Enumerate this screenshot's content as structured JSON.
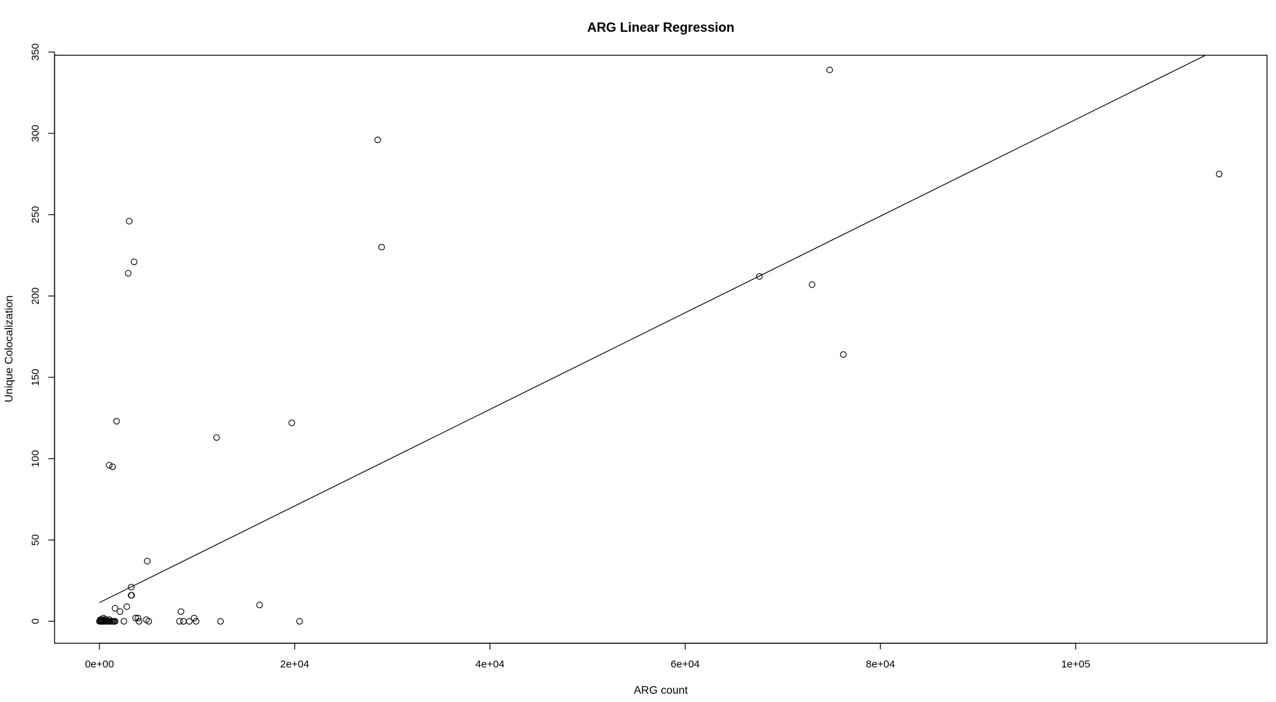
{
  "chart_data": {
    "type": "scatter",
    "title": "ARG Linear Regression",
    "xlabel": "ARG count",
    "ylabel": "Unique Colocalization",
    "xlim": [
      -4600,
      119600
    ],
    "ylim": [
      -13.5,
      348
    ],
    "x_ticks": [
      {
        "value": 0,
        "label": "0e+00"
      },
      {
        "value": 20000,
        "label": "2e+04"
      },
      {
        "value": 40000,
        "label": "4e+04"
      },
      {
        "value": 60000,
        "label": "6e+04"
      },
      {
        "value": 80000,
        "label": "8e+04"
      },
      {
        "value": 100000,
        "label": "1e+05"
      }
    ],
    "y_ticks": [
      {
        "value": 0,
        "label": "0"
      },
      {
        "value": 50,
        "label": "50"
      },
      {
        "value": 100,
        "label": "100"
      },
      {
        "value": 150,
        "label": "150"
      },
      {
        "value": 200,
        "label": "200"
      },
      {
        "value": 250,
        "label": "250"
      },
      {
        "value": 300,
        "label": "300"
      },
      {
        "value": 350,
        "label": "350"
      }
    ],
    "points": [
      {
        "x": 0,
        "y": 0
      },
      {
        "x": 50,
        "y": 0
      },
      {
        "x": 100,
        "y": 1
      },
      {
        "x": 150,
        "y": 0
      },
      {
        "x": 200,
        "y": 1
      },
      {
        "x": 250,
        "y": 0
      },
      {
        "x": 300,
        "y": 1
      },
      {
        "x": 350,
        "y": 0
      },
      {
        "x": 400,
        "y": 2
      },
      {
        "x": 450,
        "y": 0
      },
      {
        "x": 500,
        "y": 1
      },
      {
        "x": 600,
        "y": 0
      },
      {
        "x": 700,
        "y": 1
      },
      {
        "x": 800,
        "y": 0
      },
      {
        "x": 900,
        "y": 0
      },
      {
        "x": 1000,
        "y": 1
      },
      {
        "x": 1100,
        "y": 0
      },
      {
        "x": 1200,
        "y": 0
      },
      {
        "x": 1300,
        "y": 0
      },
      {
        "x": 1400,
        "y": 0
      },
      {
        "x": 1500,
        "y": 0
      },
      {
        "x": 1600,
        "y": 0
      },
      {
        "x": 1000,
        "y": 96
      },
      {
        "x": 1350,
        "y": 95
      },
      {
        "x": 1600,
        "y": 8
      },
      {
        "x": 1750,
        "y": 123
      },
      {
        "x": 2100,
        "y": 6
      },
      {
        "x": 2500,
        "y": 0
      },
      {
        "x": 2800,
        "y": 9
      },
      {
        "x": 2950,
        "y": 214
      },
      {
        "x": 3050,
        "y": 246
      },
      {
        "x": 3250,
        "y": 16
      },
      {
        "x": 3300,
        "y": 16
      },
      {
        "x": 3250,
        "y": 21
      },
      {
        "x": 3550,
        "y": 221
      },
      {
        "x": 3700,
        "y": 2
      },
      {
        "x": 3950,
        "y": 2
      },
      {
        "x": 4050,
        "y": 0
      },
      {
        "x": 4800,
        "y": 1
      },
      {
        "x": 4900,
        "y": 37
      },
      {
        "x": 5050,
        "y": 0
      },
      {
        "x": 8200,
        "y": 0
      },
      {
        "x": 8350,
        "y": 6
      },
      {
        "x": 8600,
        "y": 0
      },
      {
        "x": 9200,
        "y": 0
      },
      {
        "x": 9700,
        "y": 2
      },
      {
        "x": 9900,
        "y": 0
      },
      {
        "x": 12000,
        "y": 113
      },
      {
        "x": 12400,
        "y": 0
      },
      {
        "x": 16400,
        "y": 10
      },
      {
        "x": 19700,
        "y": 122
      },
      {
        "x": 20500,
        "y": 0
      },
      {
        "x": 28500,
        "y": 296
      },
      {
        "x": 28900,
        "y": 230
      },
      {
        "x": 67600,
        "y": 212
      },
      {
        "x": 73000,
        "y": 207
      },
      {
        "x": 74800,
        "y": 339
      },
      {
        "x": 76200,
        "y": 164
      },
      {
        "x": 114700,
        "y": 275
      }
    ],
    "regression_line": {
      "intercept": 11.5,
      "slope": 0.00297
    },
    "grid": false,
    "legend": "none"
  }
}
